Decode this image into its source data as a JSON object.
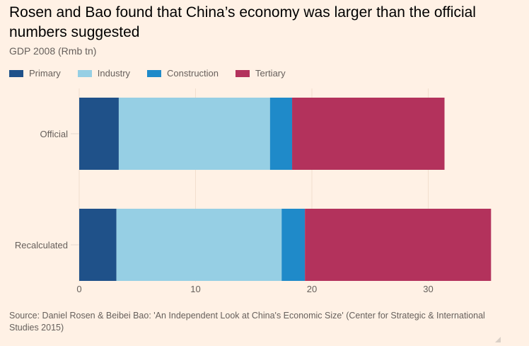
{
  "chart_data": {
    "type": "bar",
    "orientation": "horizontal",
    "stacked": true,
    "title": "Rosen and Bao found that China’s economy was larger than the official numbers suggested",
    "subtitle": "GDP 2008 (Rmb tn)",
    "xlabel": "",
    "ylabel": "",
    "categories": [
      "Official",
      "Recalculated"
    ],
    "series": [
      {
        "name": "Primary",
        "color": "#1f5189",
        "values": [
          3.4,
          3.2
        ]
      },
      {
        "name": "Industry",
        "color": "#96cfe4",
        "values": [
          13.0,
          14.2
        ]
      },
      {
        "name": "Construction",
        "color": "#1f8ac9",
        "values": [
          1.9,
          2.0
        ]
      },
      {
        "name": "Tertiary",
        "color": "#b3325c",
        "values": [
          13.1,
          16.0
        ]
      }
    ],
    "xlim": [
      0,
      36
    ],
    "xticks": [
      0,
      10,
      20,
      30
    ],
    "xtick_labels": [
      "0",
      "10",
      "20",
      "30"
    ],
    "grid": true,
    "legend_position": "top-left",
    "source": "Source: Daniel Rosen & Beibei Bao: 'An Independent Look at China's Economic Size' (Center for Strategic & International Studies 2015)"
  }
}
